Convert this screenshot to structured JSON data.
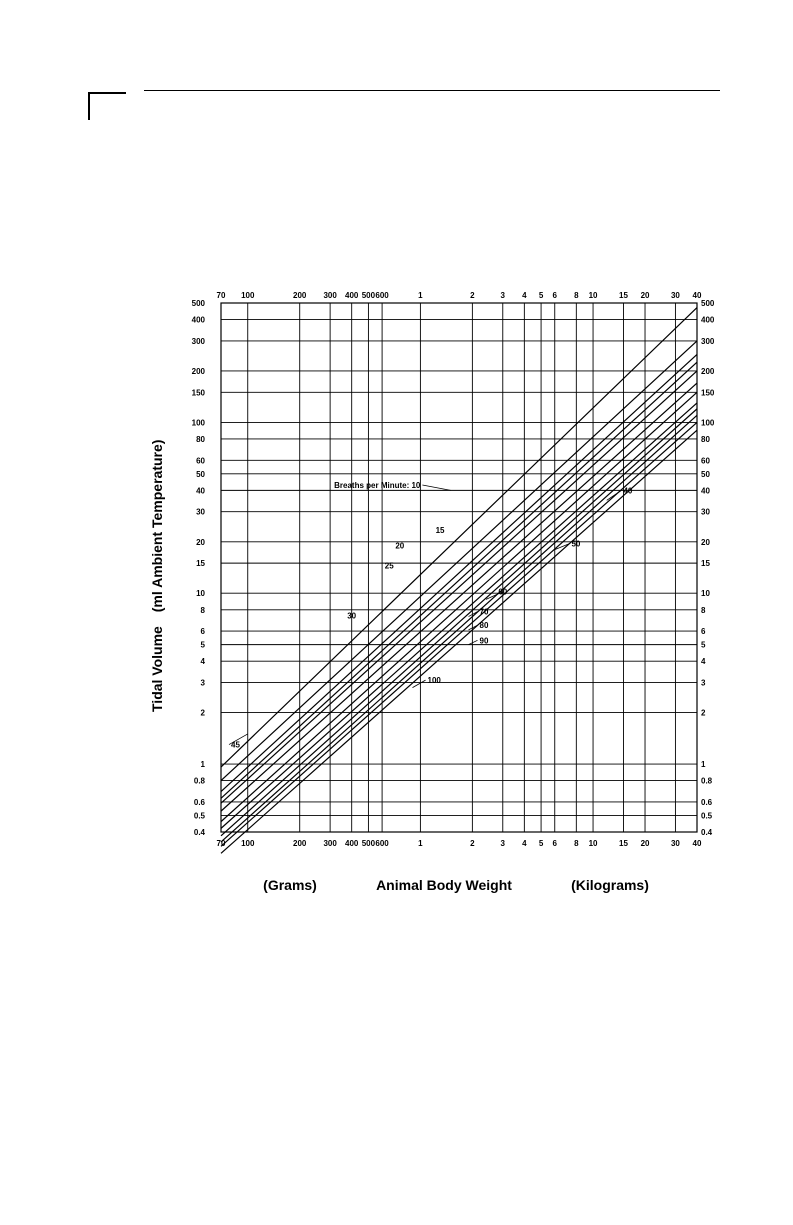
{
  "chart_data": {
    "type": "line",
    "x_scale": "log",
    "y_scale": "log",
    "xlim_grams": [
      70,
      40000
    ],
    "ylim_ml": [
      0.4,
      500
    ],
    "grid": true,
    "ylabel_left": "Tidal Volume",
    "ylabel_right_part": "(ml Ambient Temperature)",
    "xlabel_left_unit": "(Grams)",
    "xlabel_center": "Animal Body Weight",
    "xlabel_right_unit": "(Kilograms)",
    "legend_title": "Breaths per Minute:",
    "x_ticks_grams": [
      70,
      100,
      200,
      300,
      400,
      500,
      600,
      1000,
      2000,
      3000,
      4000,
      5000,
      6000,
      8000,
      10000,
      15000,
      20000,
      30000,
      40000
    ],
    "x_tick_labels_top": [
      "70",
      "100",
      "200",
      "300",
      "400",
      "500",
      "600",
      "1",
      "2",
      "3",
      "4",
      "5",
      "6",
      "8",
      "10",
      "15",
      "20",
      "30",
      "40"
    ],
    "x_tick_labels_bottom": [
      "70",
      "100",
      "200",
      "300",
      "400",
      "500",
      "600",
      "1",
      "2",
      "3",
      "4",
      "5",
      "6",
      "8",
      "10",
      "15",
      "20",
      "30",
      "40"
    ],
    "y_ticks": [
      0.4,
      0.5,
      0.6,
      0.8,
      1,
      2,
      3,
      4,
      5,
      6,
      8,
      10,
      15,
      20,
      30,
      40,
      50,
      60,
      80,
      100,
      150,
      200,
      300,
      400,
      500
    ],
    "y_tick_labels_left": [
      "0.4",
      "0.5",
      "0.6",
      "0.8",
      "1",
      "2",
      "3",
      "4",
      "5",
      "6",
      "8",
      "10",
      "15",
      "20",
      "30",
      "40",
      "50",
      "60",
      "80",
      "100",
      "150",
      "200",
      "300",
      "400",
      "500"
    ],
    "y_tick_labels_right": [
      "0.4",
      "0.5",
      "0.6",
      "0.8",
      "1",
      "2",
      "3",
      "4",
      "5",
      "6",
      "8",
      "10",
      "15",
      "20",
      "30",
      "40",
      "50",
      "60",
      "80",
      "100",
      "150",
      "200",
      "300",
      "400",
      "500"
    ],
    "series": [
      {
        "name": "10",
        "x": [
          70,
          40000
        ],
        "y": [
          0.96,
          470
        ]
      },
      {
        "name": "15",
        "x": [
          70,
          40000
        ],
        "y": [
          0.8,
          300
        ]
      },
      {
        "name": "20",
        "x": [
          70,
          40000
        ],
        "y": [
          0.69,
          250
        ]
      },
      {
        "name": "25",
        "x": [
          70,
          40000
        ],
        "y": [
          0.63,
          225
        ]
      },
      {
        "name": "30",
        "x": [
          70,
          40000
        ],
        "y": [
          0.59,
          200
        ]
      },
      {
        "name": "40",
        "x": [
          70,
          40000
        ],
        "y": [
          0.53,
          170
        ]
      },
      {
        "name": "50",
        "x": [
          70,
          40000
        ],
        "y": [
          0.46,
          150
        ]
      },
      {
        "name": "60",
        "x": [
          70,
          40000
        ],
        "y": [
          0.42,
          130
        ]
      },
      {
        "name": "70",
        "x": [
          70,
          40000
        ],
        "y": [
          0.38,
          120
        ]
      },
      {
        "name": "80",
        "x": [
          70,
          40000
        ],
        "y": [
          0.35,
          110
        ]
      },
      {
        "name": "90",
        "x": [
          70,
          40000
        ],
        "y": [
          0.33,
          100
        ]
      },
      {
        "name": "100",
        "x": [
          70,
          40000
        ],
        "y": [
          0.3,
          90
        ]
      }
    ],
    "series_labels": [
      {
        "text": "Breaths per Minute: 10",
        "x_g": 1000,
        "y": 43,
        "series": "10",
        "anchor": "end",
        "leader_end": [
          1500,
          40
        ]
      },
      {
        "text": "15",
        "x_g": 1300,
        "y": 23.5,
        "series": "15",
        "anchor": "middle"
      },
      {
        "text": "20",
        "x_g": 760,
        "y": 19,
        "series": "20",
        "anchor": "middle"
      },
      {
        "text": "25",
        "x_g": 660,
        "y": 14.5,
        "series": "25",
        "anchor": "middle"
      },
      {
        "text": "30",
        "x_g": 400,
        "y": 7.4,
        "series": "30",
        "anchor": "middle"
      },
      {
        "text": "40",
        "x_g": 15000,
        "y": 40,
        "series": "40",
        "anchor": "start",
        "leader_end": [
          12000,
          35
        ]
      },
      {
        "text": "50",
        "x_g": 7500,
        "y": 19.5,
        "series": "50",
        "anchor": "start",
        "leader_end": [
          6000,
          18
        ]
      },
      {
        "text": "60",
        "x_g": 3000,
        "y": 10.2,
        "series": "60",
        "anchor": "middle",
        "leader_end": [
          2400,
          9.2
        ]
      },
      {
        "text": "70",
        "x_g": 2200,
        "y": 7.8,
        "series": "70",
        "anchor": "start",
        "leader_end": [
          1900,
          7.3
        ]
      },
      {
        "text": "80",
        "x_g": 2200,
        "y": 6.5,
        "series": "80",
        "anchor": "start",
        "leader_end": [
          1900,
          6.1
        ]
      },
      {
        "text": "90",
        "x_g": 2200,
        "y": 5.3,
        "series": "90",
        "anchor": "start",
        "leader_end": [
          1900,
          5.0
        ]
      },
      {
        "text": "100",
        "x_g": 1100,
        "y": 3.1,
        "series": "100",
        "anchor": "start",
        "leader_end": [
          900,
          2.8
        ]
      },
      {
        "text": "45",
        "x_g": 80,
        "y": 1.3,
        "series": "",
        "anchor": "start",
        "leader_end": [
          100,
          1.5
        ]
      }
    ]
  }
}
